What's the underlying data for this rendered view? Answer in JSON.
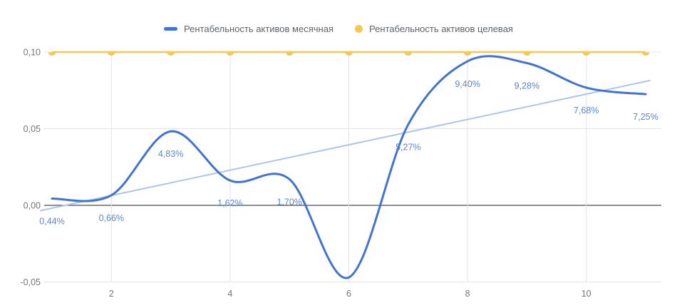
{
  "chart_data": {
    "type": "line",
    "title": "",
    "xlabel": "",
    "ylabel": "",
    "x": [
      1,
      2,
      3,
      4,
      5,
      6,
      7,
      8,
      9,
      10,
      11
    ],
    "series": [
      {
        "name": "Рентабельность активов месячная",
        "color": "#4274cf",
        "style": "smooth-line",
        "values": [
          0.0044,
          0.0066,
          0.0483,
          0.0162,
          0.017,
          -0.047,
          0.0527,
          0.094,
          0.0928,
          0.0768,
          0.0725
        ],
        "point_labels": [
          "0,44%",
          "0,66%",
          "4,83%",
          "1,62%",
          "1,70%",
          null,
          "5,27%",
          "9,40%",
          "9,28%",
          "7,68%",
          "7,25%"
        ]
      },
      {
        "name": "Рентабельность активов целевая",
        "color": "#f4c757",
        "style": "line-with-points",
        "values": [
          0.1,
          0.1,
          0.1,
          0.1,
          0.1,
          0.1,
          0.1,
          0.1,
          0.1,
          0.1,
          0.1
        ],
        "point_labels": [
          null,
          null,
          null,
          null,
          null,
          null,
          null,
          null,
          null,
          null,
          null
        ]
      }
    ],
    "trendline": {
      "x": [
        0.8,
        11.08
      ],
      "values": [
        -0.0035,
        0.0815
      ],
      "color": "#adc5ec"
    },
    "y_axis": {
      "range": [
        -0.05,
        0.1
      ],
      "ticks": [
        {
          "value": 0.1,
          "label": "0,10"
        },
        {
          "value": 0.05,
          "label": "0,05"
        },
        {
          "value": 0.0,
          "label": "0,00"
        },
        {
          "value": -0.05,
          "label": "-0,05"
        }
      ]
    },
    "x_axis": {
      "range": [
        1,
        11
      ],
      "ticks": [
        {
          "value": 2,
          "label": "2"
        },
        {
          "value": 4,
          "label": "4"
        },
        {
          "value": 6,
          "label": "6"
        },
        {
          "value": 8,
          "label": "8"
        },
        {
          "value": 10,
          "label": "10"
        }
      ]
    },
    "grid": true,
    "legend_position": "top"
  },
  "colors": {
    "background": "#ffffff",
    "grid": "#e3e3e3",
    "zero_line": "#4a4a4a",
    "axis_text": "#757575",
    "legend_text": "#5f6368",
    "data_label": "#5c86d4"
  }
}
